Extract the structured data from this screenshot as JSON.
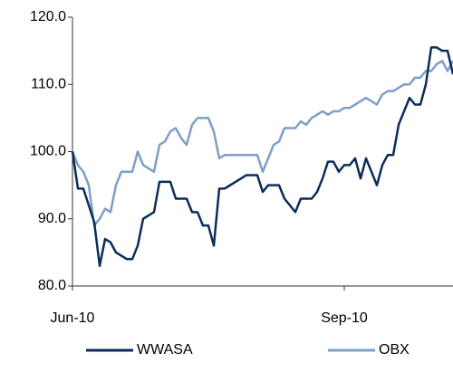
{
  "chart_data": {
    "type": "line",
    "categories": [
      "Jun-10",
      null,
      null,
      null,
      null,
      null,
      null,
      null,
      null,
      null,
      null,
      null,
      null,
      null,
      null,
      null,
      null,
      null,
      null,
      null,
      null,
      null,
      null,
      null,
      null,
      null,
      null,
      null,
      null,
      null,
      null,
      null,
      null,
      null,
      null,
      null,
      null,
      null,
      null,
      null,
      null,
      null,
      null,
      null,
      null,
      null,
      null,
      null,
      null,
      null,
      "Sep-10",
      null,
      null,
      null,
      null,
      null,
      null,
      null,
      null,
      null,
      null,
      null,
      null,
      null,
      null,
      null,
      null,
      null,
      null,
      null,
      null
    ],
    "series": [
      {
        "name": "WWASA",
        "color": "#0b2d5a",
        "values": [
          100,
          94.5,
          94.5,
          92,
          89.5,
          83,
          87,
          86.5,
          85,
          84.5,
          84,
          84,
          86,
          90,
          90.5,
          91,
          95.5,
          95.5,
          95.5,
          93,
          93,
          93,
          91,
          91,
          89,
          89,
          86,
          94.5,
          94.5,
          95,
          95.5,
          96,
          96.5,
          96.5,
          96.5,
          94,
          95,
          95,
          95,
          93,
          92,
          91,
          93,
          93,
          93,
          94,
          96,
          98.5,
          98.5,
          97,
          98,
          98,
          99,
          96,
          99,
          97,
          95,
          98,
          99.5,
          99.5,
          104,
          106,
          108,
          107,
          107,
          110,
          115.5,
          115.5,
          115,
          115,
          111.5
        ]
      },
      {
        "name": "OBX",
        "color": "#7f9fc8",
        "values": [
          100,
          98,
          97,
          95,
          89,
          90,
          91.5,
          91,
          95,
          97,
          97,
          97,
          100,
          98,
          97.5,
          97,
          101,
          101.5,
          103,
          103.5,
          102,
          101,
          104,
          105,
          105,
          105,
          103,
          99,
          99.5,
          99.5,
          99.5,
          99.5,
          99.5,
          99.5,
          99.5,
          97,
          99,
          101,
          101.5,
          103.5,
          103.5,
          103.5,
          104.5,
          104,
          105,
          105.5,
          106,
          105.5,
          106,
          106,
          106.5,
          106.5,
          107,
          107.5,
          108,
          107.5,
          107,
          108.5,
          109,
          109,
          109.5,
          110,
          110,
          111,
          111,
          112,
          112,
          113,
          113.5,
          112,
          113.5
        ]
      }
    ],
    "ylim": [
      80,
      120
    ],
    "yticks": [
      {
        "value": 80,
        "label": "80.0"
      },
      {
        "value": 90,
        "label": "90.0"
      },
      {
        "value": 100,
        "label": "100.0"
      },
      {
        "value": 110,
        "label": "110.0"
      },
      {
        "value": 120,
        "label": "120.0"
      }
    ],
    "grid": false,
    "legend": "bottom"
  }
}
